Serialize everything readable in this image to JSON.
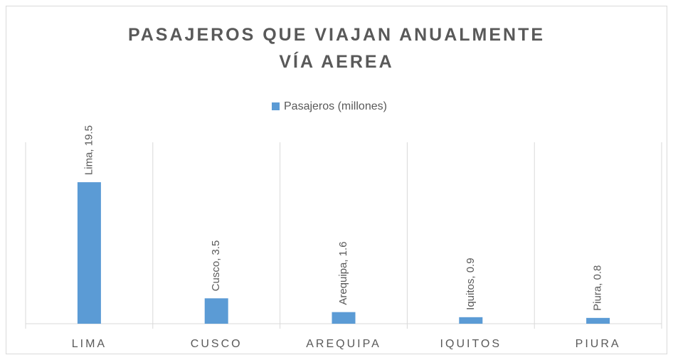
{
  "chart_data": {
    "type": "bar",
    "title": "PASAJEROS QUE VIAJAN ANUALMENTE VÍA AEREA",
    "categories": [
      "LIMA",
      "CUSCO",
      "AREQUIPA",
      "IQUITOS",
      "PIURA"
    ],
    "series": [
      {
        "name": "Pasajeros (millones)",
        "color": "#5b9bd5",
        "values": [
          19.5,
          3.5,
          1.6,
          0.9,
          0.8
        ],
        "value_labels": [
          "Lima, 19.5",
          "Cusco, 3.5",
          "Arequipa, 1.6",
          "Iquitos, 0.9",
          "Piura, 0.8"
        ]
      }
    ],
    "ylim": [
      0,
      25
    ],
    "legend": "top"
  }
}
